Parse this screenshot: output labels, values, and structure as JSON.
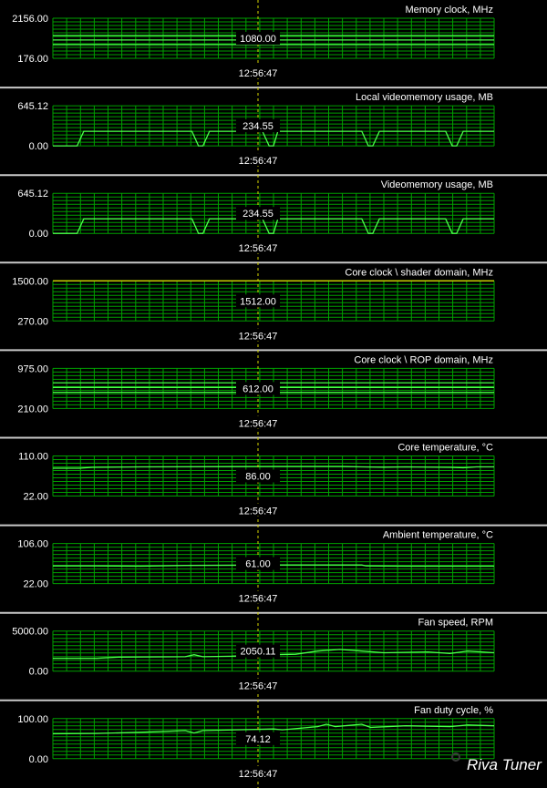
{
  "app": {
    "watermark": "Riva Tuner"
  },
  "cursor_time": "12:56:47",
  "colors": {
    "trace": "#4aff4a",
    "grid": "#00a000",
    "yellow_trace": "#d8d800",
    "cursor": "#d8d800",
    "separator": "#c8c8c8",
    "background": "#000000"
  },
  "panels": [
    {
      "title": "Memory clock, MHz",
      "y_max": "2156.00",
      "y_min": "176.00",
      "readout": "1080.00",
      "trace_color": "#4aff4a",
      "ymax": 2156,
      "ymin": 176,
      "chart_data": {
        "type": "line",
        "ylim": [
          176,
          2156
        ],
        "series": [
          {
            "name": "Memory clock, MHz",
            "points": [
              [
                0,
                1080
              ],
              [
                1,
                1080
              ]
            ]
          }
        ],
        "extra_levels": [
          1300,
          850
        ]
      }
    },
    {
      "title": "Local videomemory usage, MB",
      "y_max": "645.12",
      "y_min": "0.00",
      "readout": "234.55",
      "trace_color": "#4aff4a",
      "ymax": 645.12,
      "ymin": 0,
      "chart_data": {
        "type": "line",
        "ylim": [
          0,
          645.12
        ],
        "series": [
          {
            "name": "Local videomemory usage, MB",
            "points": [
              [
                0,
                0
              ],
              [
                0.055,
                0
              ],
              [
                0.07,
                234.55
              ],
              [
                0.315,
                234.55
              ],
              [
                0.33,
                0
              ],
              [
                0.34,
                0
              ],
              [
                0.355,
                234.55
              ],
              [
                0.475,
                234.55
              ],
              [
                0.49,
                0
              ],
              [
                0.5,
                0
              ],
              [
                0.51,
                234.55
              ],
              [
                0.7,
                234.55
              ],
              [
                0.715,
                0
              ],
              [
                0.725,
                0
              ],
              [
                0.74,
                234.55
              ],
              [
                0.89,
                234.55
              ],
              [
                0.905,
                0
              ],
              [
                0.915,
                0
              ],
              [
                0.93,
                234.55
              ],
              [
                1,
                234.55
              ]
            ]
          }
        ]
      }
    },
    {
      "title": "Videomemory usage, MB",
      "y_max": "645.12",
      "y_min": "0.00",
      "readout": "234.55",
      "trace_color": "#4aff4a",
      "ymax": 645.12,
      "ymin": 0,
      "chart_data": {
        "type": "line",
        "ylim": [
          0,
          645.12
        ],
        "series": [
          {
            "name": "Videomemory usage, MB",
            "points": [
              [
                0,
                0
              ],
              [
                0.055,
                0
              ],
              [
                0.07,
                234.55
              ],
              [
                0.315,
                234.55
              ],
              [
                0.33,
                0
              ],
              [
                0.34,
                0
              ],
              [
                0.355,
                234.55
              ],
              [
                0.475,
                234.55
              ],
              [
                0.49,
                0
              ],
              [
                0.5,
                0
              ],
              [
                0.51,
                234.55
              ],
              [
                0.7,
                234.55
              ],
              [
                0.715,
                0
              ],
              [
                0.725,
                0
              ],
              [
                0.74,
                234.55
              ],
              [
                0.89,
                234.55
              ],
              [
                0.905,
                0
              ],
              [
                0.915,
                0
              ],
              [
                0.93,
                234.55
              ],
              [
                1,
                234.55
              ]
            ]
          }
        ]
      }
    },
    {
      "title": "Core clock \\ shader domain, MHz",
      "y_max": "1500.00",
      "y_min": "270.00",
      "readout": "1512.00",
      "trace_color": "#d8d800",
      "ymax": 1500,
      "ymin": 270,
      "chart_data": {
        "type": "line",
        "ylim": [
          270,
          1500
        ],
        "series": [
          {
            "name": "Core clock \\ shader domain, MHz",
            "points": [
              [
                0,
                1500
              ],
              [
                1,
                1500
              ]
            ]
          }
        ]
      }
    },
    {
      "title": "Core clock \\ ROP domain, MHz",
      "y_max": "975.00",
      "y_min": "210.00",
      "readout": "612.00",
      "trace_color": "#4aff4a",
      "ymax": 975,
      "ymin": 210,
      "chart_data": {
        "type": "line",
        "ylim": [
          210,
          975
        ],
        "series": [
          {
            "name": "Core clock \\ ROP domain, MHz",
            "points": [
              [
                0,
                612
              ],
              [
                1,
                612
              ]
            ]
          }
        ],
        "extra_levels": [
          700,
          520
        ]
      }
    },
    {
      "title": "Core temperature, °C",
      "y_max": "110.00",
      "y_min": "22.00",
      "readout": "86.00",
      "trace_color": "#4aff4a",
      "ymax": 110,
      "ymin": 22,
      "chart_data": {
        "type": "line",
        "ylim": [
          22,
          110
        ],
        "series": [
          {
            "name": "Core temperature, °C",
            "points": [
              [
                0,
                83
              ],
              [
                0.06,
                83
              ],
              [
                0.09,
                85
              ],
              [
                0.2,
                86
              ],
              [
                0.35,
                86.5
              ],
              [
                0.5,
                87
              ],
              [
                0.65,
                87
              ],
              [
                0.7,
                86
              ],
              [
                0.75,
                85.5
              ],
              [
                0.8,
                86
              ],
              [
                0.9,
                85
              ],
              [
                0.93,
                84
              ],
              [
                0.96,
                86
              ],
              [
                1,
                86
              ]
            ]
          }
        ]
      }
    },
    {
      "title": "Ambient temperature, °C",
      "y_max": "106.00",
      "y_min": "22.00",
      "readout": "61.00",
      "trace_color": "#4aff4a",
      "ymax": 106,
      "ymin": 22,
      "chart_data": {
        "type": "line",
        "ylim": [
          22,
          106
        ],
        "series": [
          {
            "name": "Ambient temperature, °C",
            "points": [
              [
                0,
                59
              ],
              [
                0.1,
                59
              ],
              [
                0.2,
                58.5
              ],
              [
                0.3,
                60
              ],
              [
                0.5,
                61
              ],
              [
                0.7,
                61
              ],
              [
                0.71,
                59
              ],
              [
                0.8,
                58.5
              ],
              [
                1,
                58.5
              ]
            ]
          }
        ]
      }
    },
    {
      "title": "Fan speed, RPM",
      "y_max": "5000.00",
      "y_min": "0.00",
      "readout": "2050.11",
      "trace_color": "#4aff4a",
      "ymax": 5000,
      "ymin": 0,
      "chart_data": {
        "type": "line",
        "ylim": [
          0,
          5000
        ],
        "series": [
          {
            "name": "Fan speed, RPM",
            "points": [
              [
                0,
                1600
              ],
              [
                0.1,
                1600
              ],
              [
                0.15,
                1750
              ],
              [
                0.3,
                1800
              ],
              [
                0.32,
                2050
              ],
              [
                0.34,
                1800
              ],
              [
                0.4,
                1850
              ],
              [
                0.5,
                2050
              ],
              [
                0.55,
                2100
              ],
              [
                0.6,
                2500
              ],
              [
                0.65,
                2700
              ],
              [
                0.7,
                2500
              ],
              [
                0.75,
                2300
              ],
              [
                0.85,
                2400
              ],
              [
                0.9,
                2200
              ],
              [
                0.94,
                2500
              ],
              [
                1,
                2300
              ]
            ]
          }
        ]
      }
    },
    {
      "title": "Fan duty cycle, %",
      "y_max": "100.00",
      "y_min": "0.00",
      "readout": "74.12",
      "trace_color": "#4aff4a",
      "ymax": 100,
      "ymin": 0,
      "chart_data": {
        "type": "line",
        "ylim": [
          0,
          100
        ],
        "series": [
          {
            "name": "Fan duty cycle, %",
            "points": [
              [
                0,
                62
              ],
              [
                0.1,
                63
              ],
              [
                0.2,
                66
              ],
              [
                0.3,
                70
              ],
              [
                0.32,
                64
              ],
              [
                0.34,
                70
              ],
              [
                0.5,
                74
              ],
              [
                0.52,
                72
              ],
              [
                0.6,
                80
              ],
              [
                0.62,
                86
              ],
              [
                0.64,
                80
              ],
              [
                0.7,
                86
              ],
              [
                0.72,
                78
              ],
              [
                0.8,
                82
              ],
              [
                0.9,
                80
              ],
              [
                0.94,
                84
              ],
              [
                1,
                82
              ]
            ]
          }
        ]
      }
    }
  ]
}
